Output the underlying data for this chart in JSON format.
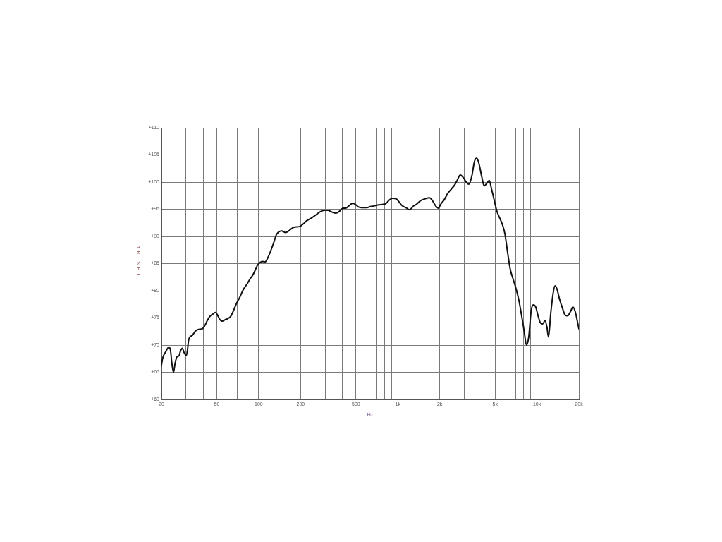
{
  "chart_data": {
    "type": "line",
    "xlabel": "Hz",
    "ylabel": "dB SPL",
    "color": "#111111",
    "log": "x",
    "grid": true,
    "marker": "none",
    "line_style": "solid",
    "xlim": [
      20,
      20000
    ],
    "ylim": [
      60,
      110
    ],
    "xticks": [
      20,
      {
        "value": 30,
        "label": null
      },
      {
        "value": 40,
        "label": null
      },
      50,
      {
        "value": 60,
        "label": null
      },
      {
        "value": 70,
        "label": null
      },
      {
        "value": 80,
        "label": null
      },
      {
        "value": 90,
        "label": null
      },
      100,
      200,
      {
        "value": 300,
        "label": null
      },
      {
        "value": 400,
        "label": null
      },
      500,
      {
        "value": 600,
        "label": null
      },
      {
        "value": 700,
        "label": null
      },
      {
        "value": 800,
        "label": null
      },
      {
        "value": 900,
        "label": null
      },
      {
        "value": 1000,
        "label": "1k"
      },
      {
        "value": 2000,
        "label": "2k"
      },
      {
        "value": 3000,
        "label": null
      },
      {
        "value": 4000,
        "label": null
      },
      {
        "value": 5000,
        "label": "5k"
      },
      {
        "value": 6000,
        "label": null
      },
      {
        "value": 7000,
        "label": null
      },
      {
        "value": 8000,
        "label": null
      },
      {
        "value": 9000,
        "label": null
      },
      {
        "value": 10000,
        "label": "10k"
      },
      {
        "value": 20000,
        "label": "20k"
      }
    ],
    "yticks": [
      {
        "value": 60,
        "label": "+60"
      },
      {
        "value": 65,
        "label": "+65"
      },
      {
        "value": 70,
        "label": "+70"
      },
      {
        "value": 75,
        "label": "+75"
      },
      {
        "value": 80,
        "label": "+80"
      },
      {
        "value": 85,
        "label": "+85"
      },
      {
        "value": 90,
        "label": "+90"
      },
      {
        "value": 95,
        "label": "+95"
      },
      {
        "value": 100,
        "label": "+100"
      },
      {
        "value": 105,
        "label": "+105"
      },
      {
        "value": 110,
        "label": "+110"
      }
    ],
    "x": [
      20,
      20.4,
      21.4,
      22.6,
      23.2,
      23.8,
      24.4,
      25,
      25.8,
      26.7,
      27.4,
      28.3,
      29,
      30.2,
      30.7,
      31.3,
      32,
      33.4,
      35.1,
      37,
      39.3,
      40.8,
      42.7,
      44.3,
      46.7,
      49,
      50.4,
      52.6,
      54.6,
      57.5,
      60.2,
      62.5,
      65,
      68.8,
      73.1,
      77.1,
      82.7,
      87.3,
      90.7,
      94.4,
      98,
      102,
      106,
      111,
      115,
      121,
      128,
      134,
      139,
      146,
      156,
      166,
      179,
      196,
      209,
      222,
      240,
      259,
      275,
      297,
      315,
      335,
      359,
      379,
      404,
      423,
      448,
      474,
      494,
      523,
      554,
      600,
      634,
      673,
      727,
      787,
      826,
      867,
      913,
      977,
      1016,
      1068,
      1141,
      1218,
      1282,
      1361,
      1461,
      1562,
      1691,
      1760,
      1870,
      1958,
      2032,
      2160,
      2284,
      2420,
      2566,
      2668,
      2808,
      2941,
      3117,
      3242,
      3414,
      3546,
      3690,
      3836,
      4015,
      4175,
      4371,
      4539,
      4715,
      4957,
      5155,
      5415,
      5676,
      5899,
      6130,
      6421,
      6746,
      7090,
      7420,
      7711,
      8088,
      8405,
      8726,
      9078,
      9432,
      9800,
      10183,
      10580,
      10992,
      11420,
      11778,
      12101,
      12573,
      13062,
      13473,
      13930,
      14472,
      15200,
      15970,
      16590,
      17430,
      18110,
      18810,
      19540,
      20000
    ],
    "values": [
      66.3,
      67.6,
      68.7,
      69.6,
      69.1,
      66.5,
      65.0,
      66.5,
      67.8,
      68.0,
      68.9,
      69.4,
      68.7,
      68.1,
      68.9,
      70.8,
      71.5,
      71.8,
      72.6,
      72.9,
      73.0,
      73.5,
      74.5,
      75.2,
      75.7,
      76.0,
      75.6,
      74.7,
      74.4,
      74.7,
      74.9,
      75.2,
      76.0,
      77.5,
      78.8,
      80.1,
      81.3,
      82.3,
      82.9,
      83.8,
      84.7,
      85.2,
      85.4,
      85.3,
      85.8,
      87.1,
      88.8,
      90.3,
      90.8,
      91.0,
      90.7,
      91.1,
      91.7,
      91.8,
      92.3,
      92.9,
      93.4,
      94.0,
      94.5,
      94.8,
      94.8,
      94.5,
      94.3,
      94.6,
      95.2,
      95.2,
      95.7,
      96.1,
      95.9,
      95.4,
      95.3,
      95.3,
      95.5,
      95.6,
      95.8,
      95.9,
      96.1,
      96.7,
      97.0,
      96.9,
      96.4,
      95.7,
      95.3,
      94.9,
      95.5,
      95.9,
      96.6,
      96.9,
      97.1,
      96.7,
      95.6,
      95.2,
      95.9,
      96.8,
      97.9,
      98.7,
      99.5,
      100.3,
      101.3,
      100.9,
      99.9,
      99.6,
      101.3,
      103.7,
      104.4,
      103.3,
      100.9,
      99.3,
      99.8,
      100.3,
      98.7,
      96.4,
      94.6,
      93.3,
      92.0,
      90.3,
      87.3,
      84.0,
      82.1,
      80.3,
      78.2,
      75.8,
      72.6,
      70.0,
      71.5,
      76.3,
      77.4,
      77.0,
      75.4,
      74.1,
      73.9,
      74.5,
      73.4,
      71.5,
      76.0,
      79.5,
      80.9,
      80.3,
      78.6,
      76.9,
      75.5,
      75.4,
      76.2,
      77.0,
      76.2,
      74.3,
      73.0
    ]
  }
}
